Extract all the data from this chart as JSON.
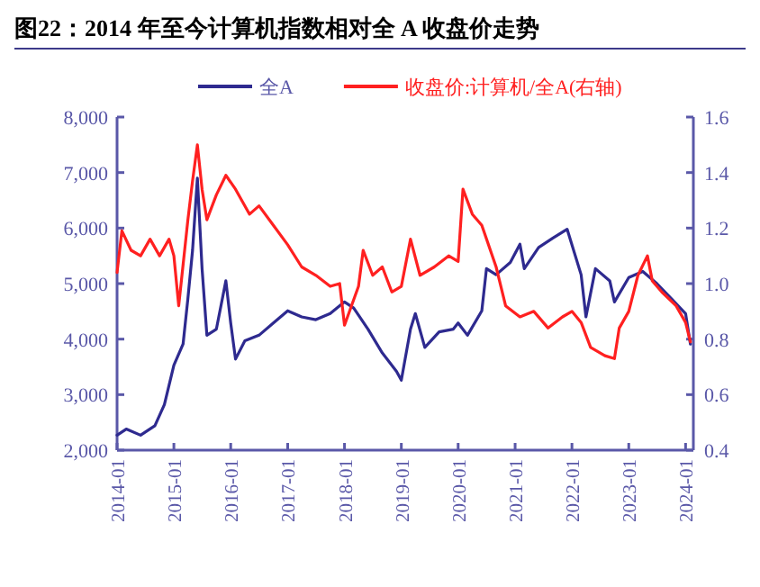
{
  "chart_data": {
    "type": "line",
    "title": "图22：2014 年至今计算机指数相对全 A 收盘价走势",
    "legend": "top",
    "grid": false,
    "xlim": [
      "2014-01-01",
      "2024-02-20"
    ],
    "xticks": [
      "2014-01",
      "2015-01",
      "2016-01",
      "2017-01",
      "2018-01",
      "2019-01",
      "2020-01",
      "2021-01",
      "2022-01",
      "2023-01",
      "2024-01"
    ],
    "ylim": [
      2000,
      8000
    ],
    "yticks": [
      {
        "value": 2000,
        "label": "2,000"
      },
      {
        "value": 3000,
        "label": "3,000"
      },
      {
        "value": 4000,
        "label": "4,000"
      },
      {
        "value": 5000,
        "label": "5,000"
      },
      {
        "value": 6000,
        "label": "6,000"
      },
      {
        "value": 7000,
        "label": "7,000"
      },
      {
        "value": 8000,
        "label": "8,000"
      }
    ],
    "y2lim": [
      0.4,
      1.6
    ],
    "y2ticks": [
      0.4,
      0.6,
      0.8,
      {
        "value": 1,
        "label": "1.0"
      },
      1.2,
      1.4,
      1.6
    ],
    "series": [
      {
        "name": "全A",
        "color": "#2e2a8f",
        "x": [
          "2014-01",
          "2014-03",
          "2014-06",
          "2014-09",
          "2014-11",
          "2015-01",
          "2015-03",
          "2015-04",
          "2015-05",
          "2015-06",
          "2015-07",
          "2015-08",
          "2015-10",
          "2015-12",
          "2016-01",
          "2016-02",
          "2016-04",
          "2016-07",
          "2016-10",
          "2017-01",
          "2017-04",
          "2017-07",
          "2017-10",
          "2018-01",
          "2018-03",
          "2018-06",
          "2018-09",
          "2018-12",
          "2019-01",
          "2019-03",
          "2019-04",
          "2019-06",
          "2019-09",
          "2019-12",
          "2020-01",
          "2020-03",
          "2020-06",
          "2020-07",
          "2020-09",
          "2020-12",
          "2021-02",
          "2021-03",
          "2021-06",
          "2021-09",
          "2021-12",
          "2022-03",
          "2022-04",
          "2022-06",
          "2022-09",
          "2022-10",
          "2023-01",
          "2023-04",
          "2023-07",
          "2023-10",
          "2024-01",
          "2024-02"
        ],
        "values": [
          2270,
          2380,
          2270,
          2440,
          2820,
          3530,
          3910,
          4730,
          5600,
          6900,
          5270,
          4070,
          4180,
          5050,
          4290,
          3640,
          3970,
          4070,
          4290,
          4510,
          4400,
          4350,
          4460,
          4670,
          4560,
          4180,
          3750,
          3420,
          3260,
          4180,
          4460,
          3850,
          4130,
          4180,
          4290,
          4070,
          4510,
          5270,
          5160,
          5380,
          5710,
          5270,
          5650,
          5820,
          5980,
          5160,
          4400,
          5270,
          5050,
          4670,
          5110,
          5220,
          5000,
          4730,
          4460,
          3910
        ]
      },
      {
        "name": "收盘价:计算机/全A(右轴)",
        "color": "#ff2020",
        "axis": "y2",
        "x": [
          "2014-01",
          "2014-02",
          "2014-04",
          "2014-06",
          "2014-08",
          "2014-10",
          "2014-12",
          "2015-01",
          "2015-02",
          "2015-04",
          "2015-05",
          "2015-06",
          "2015-07",
          "2015-08",
          "2015-10",
          "2015-12",
          "2016-02",
          "2016-05",
          "2016-07",
          "2016-10",
          "2017-01",
          "2017-04",
          "2017-07",
          "2017-10",
          "2017-12",
          "2018-01",
          "2018-04",
          "2018-05",
          "2018-07",
          "2018-09",
          "2018-11",
          "2019-01",
          "2019-03",
          "2019-05",
          "2019-08",
          "2019-11",
          "2020-01",
          "2020-02",
          "2020-04",
          "2020-06",
          "2020-09",
          "2020-11",
          "2021-02",
          "2021-05",
          "2021-08",
          "2021-11",
          "2022-01",
          "2022-03",
          "2022-05",
          "2022-08",
          "2022-10",
          "2022-11",
          "2023-01",
          "2023-03",
          "2023-05",
          "2023-06",
          "2023-08",
          "2023-11",
          "2024-01",
          "2024-02"
        ],
        "values": [
          1.04,
          1.19,
          1.12,
          1.1,
          1.16,
          1.1,
          1.16,
          1.1,
          0.92,
          1.23,
          1.37,
          1.5,
          1.34,
          1.23,
          1.32,
          1.39,
          1.34,
          1.25,
          1.28,
          1.21,
          1.14,
          1.06,
          1.03,
          0.99,
          1.0,
          0.85,
          0.99,
          1.12,
          1.03,
          1.06,
          0.97,
          0.99,
          1.16,
          1.03,
          1.06,
          1.1,
          1.08,
          1.34,
          1.25,
          1.21,
          1.06,
          0.92,
          0.88,
          0.9,
          0.84,
          0.88,
          0.9,
          0.86,
          0.77,
          0.74,
          0.73,
          0.84,
          0.9,
          1.03,
          1.1,
          1.01,
          0.97,
          0.92,
          0.86,
          0.79
        ]
      }
    ]
  }
}
